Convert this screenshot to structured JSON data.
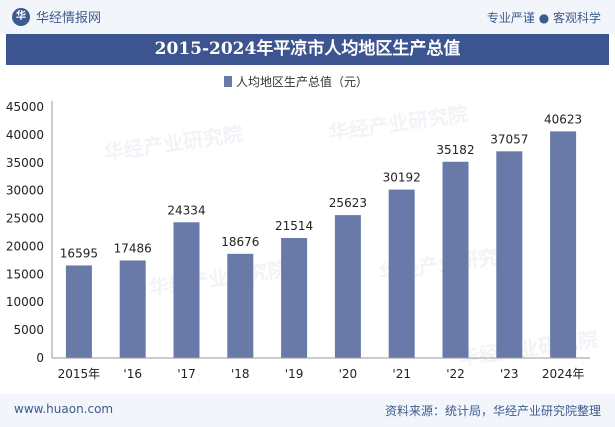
{
  "header": {
    "brand": "华经情报网",
    "slogan": "专业严谨 ● 客观科学"
  },
  "footer": {
    "site": "www.huaon.com",
    "source": "资料来源：统计局，华经产业研究院整理"
  },
  "watermark": "华经产业研究院",
  "colors": {
    "bar": "#6a7aa8",
    "title_bg": "#3c5590",
    "band": "#f2f5fa",
    "accent": "#3d5a8f"
  },
  "chart_data": {
    "type": "bar",
    "title": "2015-2024年平凉市人均地区生产总值",
    "categories": [
      "2015年",
      "'16",
      "'17",
      "'18",
      "'19",
      "'20",
      "'21",
      "'22",
      "'23",
      "2024年"
    ],
    "series": [
      {
        "name": "人均地区生产总值（元）",
        "values": [
          16595,
          17486,
          24334,
          18676,
          21514,
          25623,
          30192,
          35182,
          37057,
          40623
        ]
      }
    ],
    "ylim": [
      0,
      45000
    ],
    "yticks": [
      0,
      5000,
      10000,
      15000,
      20000,
      25000,
      30000,
      35000,
      40000,
      45000
    ],
    "xlabel": "",
    "ylabel": "",
    "grid": false,
    "legend": "top-center"
  }
}
